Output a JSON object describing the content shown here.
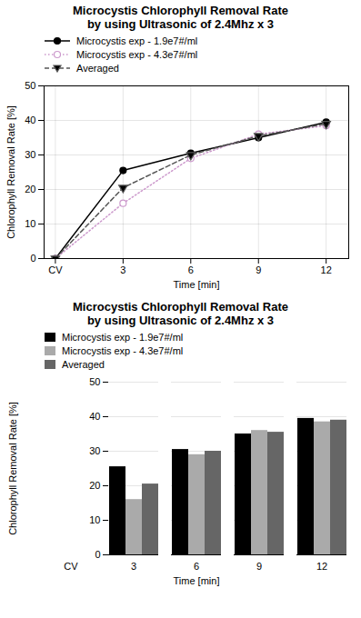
{
  "chart_data": [
    {
      "type": "line",
      "title": "Microcystis Chlorophyll Removal Rate\nby using Ultrasonic of 2.4Mhz x 3",
      "xlabel": "Time [min]",
      "ylabel": "Chlorophyll Removal Rate [%]",
      "x": [
        0,
        3,
        6,
        9,
        12
      ],
      "xlim": [
        -0.5,
        13
      ],
      "xticks": [
        {
          "value": 0,
          "label": "CV"
        },
        3,
        6,
        9,
        12
      ],
      "ylim": [
        0,
        50
      ],
      "yticks": [
        0,
        10,
        20,
        30,
        40,
        50
      ],
      "grid": true,
      "legend": "upper left",
      "series": [
        {
          "name": "Microcystis exp - 1.9e7#/ml",
          "color": "#000000",
          "marker": "circle",
          "line_style": "solid",
          "values": [
            0,
            25.5,
            30.5,
            35.0,
            39.5
          ]
        },
        {
          "name": "Microcystis exp - 4.3e7#/ml",
          "color": "#cc99cc",
          "marker": "open_circle",
          "line_style": "dotted",
          "values": [
            0,
            16.0,
            29.0,
            36.0,
            38.5
          ]
        },
        {
          "name": "Averaged",
          "color": "#555555",
          "marker": "triangle_down",
          "line_style": "dashed",
          "values": [
            0,
            20.5,
            30.0,
            35.5,
            39.0
          ]
        }
      ]
    },
    {
      "type": "bar",
      "title": "Microcystis Chlorophyll Removal Rate\nby using Ultrasonic of 2.4Mhz x 3",
      "xlabel": "Time [min]",
      "ylabel": "Chlorophyll Removal Rate [%]",
      "categories": [
        "CV",
        "3",
        "6",
        "9",
        "12"
      ],
      "ylim": [
        0,
        50
      ],
      "yticks": [
        0,
        10,
        20,
        30,
        40,
        50
      ],
      "grid": "y",
      "legend": "upper left",
      "series": [
        {
          "name": "Microcystis exp - 1.9e7#/ml",
          "color": "#000000",
          "values": [
            null,
            25.5,
            30.5,
            35.0,
            39.5
          ]
        },
        {
          "name": "Microcystis exp - 4.3e7#/ml",
          "color": "#aaaaaa",
          "values": [
            null,
            16.0,
            29.0,
            36.0,
            38.5
          ]
        },
        {
          "name": "Averaged",
          "color": "#666666",
          "values": [
            null,
            20.5,
            30.0,
            35.5,
            39.0
          ]
        }
      ]
    }
  ]
}
